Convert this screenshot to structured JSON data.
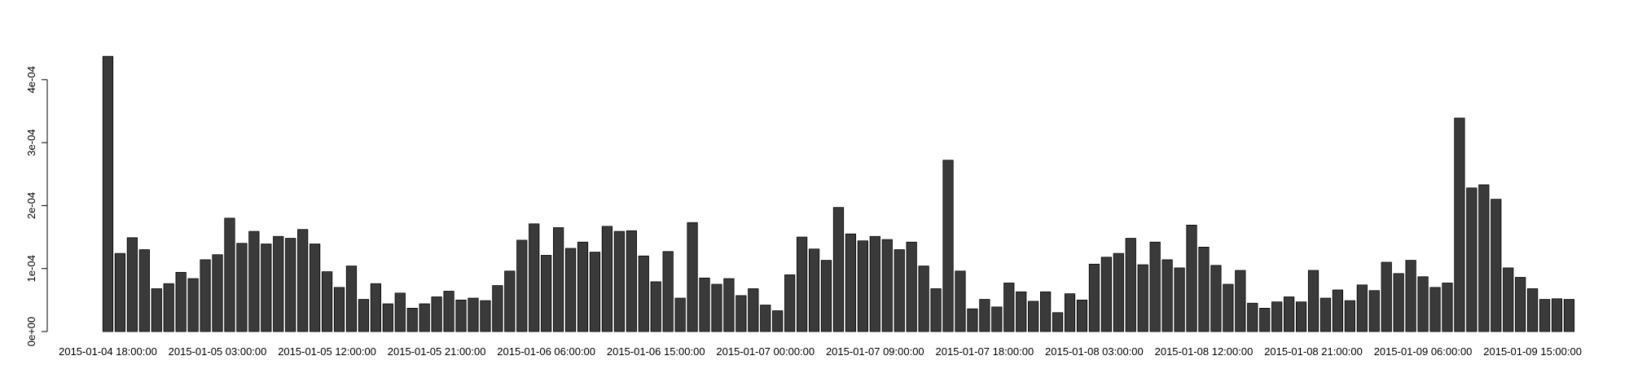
{
  "chart_data": {
    "type": "bar",
    "title": "",
    "xlabel": "",
    "ylabel": "",
    "ylim": [
      0,
      0.00045
    ],
    "yticks": [
      {
        "value": 0,
        "label": "0e+00"
      },
      {
        "value": 0.0001,
        "label": "1e-04"
      },
      {
        "value": 0.0002,
        "label": "2e-04"
      },
      {
        "value": 0.0003,
        "label": "3e-04"
      },
      {
        "value": 0.0004,
        "label": "4e-04"
      }
    ],
    "xticks": [
      {
        "index": 0,
        "label": "2015-01-04 18:00:00"
      },
      {
        "index": 9,
        "label": "2015-01-05 03:00:00"
      },
      {
        "index": 18,
        "label": "2015-01-05 12:00:00"
      },
      {
        "index": 27,
        "label": "2015-01-05 21:00:00"
      },
      {
        "index": 36,
        "label": "2015-01-06 06:00:00"
      },
      {
        "index": 45,
        "label": "2015-01-06 15:00:00"
      },
      {
        "index": 54,
        "label": "2015-01-07 00:00:00"
      },
      {
        "index": 63,
        "label": "2015-01-07 09:00:00"
      },
      {
        "index": 72,
        "label": "2015-01-07 18:00:00"
      },
      {
        "index": 81,
        "label": "2015-01-08 03:00:00"
      },
      {
        "index": 90,
        "label": "2015-01-08 12:00:00"
      },
      {
        "index": 99,
        "label": "2015-01-08 21:00:00"
      },
      {
        "index": 108,
        "label": "2015-01-09 06:00:00"
      },
      {
        "index": 117,
        "label": "2015-01-09 15:00:00"
      }
    ],
    "bar_color": "#3a3a3a",
    "values": [
      0.000437,
      0.000124,
      0.000149,
      0.00013,
      6.8e-05,
      7.6e-05,
      9.4e-05,
      8.4e-05,
      0.000114,
      0.000122,
      0.00018,
      0.00014,
      0.000159,
      0.000139,
      0.000151,
      0.000148,
      0.000162,
      0.000139,
      9.5e-05,
      7e-05,
      0.000104,
      5.1e-05,
      7.6e-05,
      4.4e-05,
      6.1e-05,
      3.7e-05,
      4.4e-05,
      5.5e-05,
      6.4e-05,
      5e-05,
      5.3e-05,
      4.9e-05,
      7.3e-05,
      9.6e-05,
      0.000145,
      0.000171,
      0.000121,
      0.000165,
      0.000132,
      0.000142,
      0.000126,
      0.000167,
      0.000159,
      0.00016,
      0.00012,
      7.9e-05,
      0.000127,
      5.3e-05,
      0.000173,
      8.5e-05,
      7.5e-05,
      8.4e-05,
      5.7e-05,
      6.8e-05,
      4.2e-05,
      3.3e-05,
      9e-05,
      0.00015,
      0.000131,
      0.000113,
      0.000197,
      0.000155,
      0.000144,
      0.000151,
      0.000146,
      0.00013,
      0.000142,
      0.000104,
      6.8e-05,
      0.000272,
      9.6e-05,
      3.6e-05,
      5.1e-05,
      3.9e-05,
      7.7e-05,
      6.3e-05,
      4.8e-05,
      6.3e-05,
      3e-05,
      6e-05,
      5e-05,
      0.000107,
      0.000118,
      0.000124,
      0.000148,
      0.000106,
      0.000142,
      0.000114,
      0.000101,
      0.000169,
      0.000134,
      0.000105,
      7.5e-05,
      9.7e-05,
      4.5e-05,
      3.7e-05,
      4.7e-05,
      5.5e-05,
      4.7e-05,
      9.7e-05,
      5.3e-05,
      6.6e-05,
      4.9e-05,
      7.4e-05,
      6.5e-05,
      0.00011,
      9.2e-05,
      0.000113,
      8.7e-05,
      7e-05,
      7.7e-05,
      0.000339,
      0.000228,
      0.000233,
      0.00021,
      0.000101,
      8.6e-05,
      6.8e-05,
      5.1e-05,
      5.2e-05,
      5.1e-05
    ]
  }
}
